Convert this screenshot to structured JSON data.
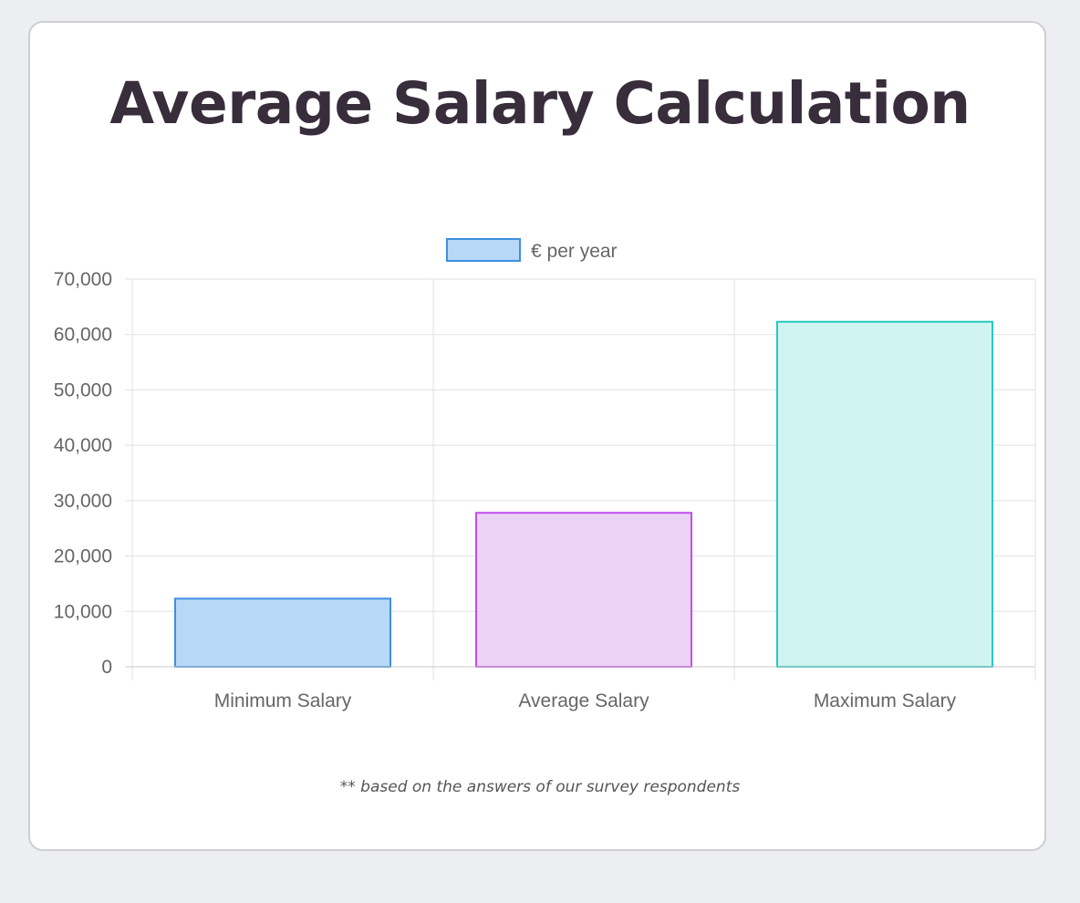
{
  "title": "Average Salary Calculation",
  "footnote": "** based on the answers of our survey respondents",
  "colors": {
    "background": "#ECEEF2",
    "title": "#382D3B",
    "grid": "#E0E0E0",
    "tick_text": "#666666"
  },
  "chart_data": {
    "type": "bar",
    "categories": [
      "Minimum Salary",
      "Average Salary",
      "Maximum Salary"
    ],
    "series": [
      {
        "name": "€ per year",
        "values": [
          12300,
          27800,
          62300
        ],
        "fill_colors": [
          "#B8D8F8",
          "#EAD3F5",
          "#CFF4F1"
        ],
        "border_colors": [
          "#3D8FE0",
          "#C34CF0",
          "#24C9C0"
        ]
      }
    ],
    "ylim": [
      0,
      70000
    ],
    "yticks": [
      "0",
      "10,000",
      "20,000",
      "30,000",
      "40,000",
      "50,000",
      "60,000",
      "70,000"
    ],
    "ytick_values": [
      0,
      10000,
      20000,
      30000,
      40000,
      50000,
      60000,
      70000
    ],
    "legend_position": "top-center",
    "grid": true
  }
}
